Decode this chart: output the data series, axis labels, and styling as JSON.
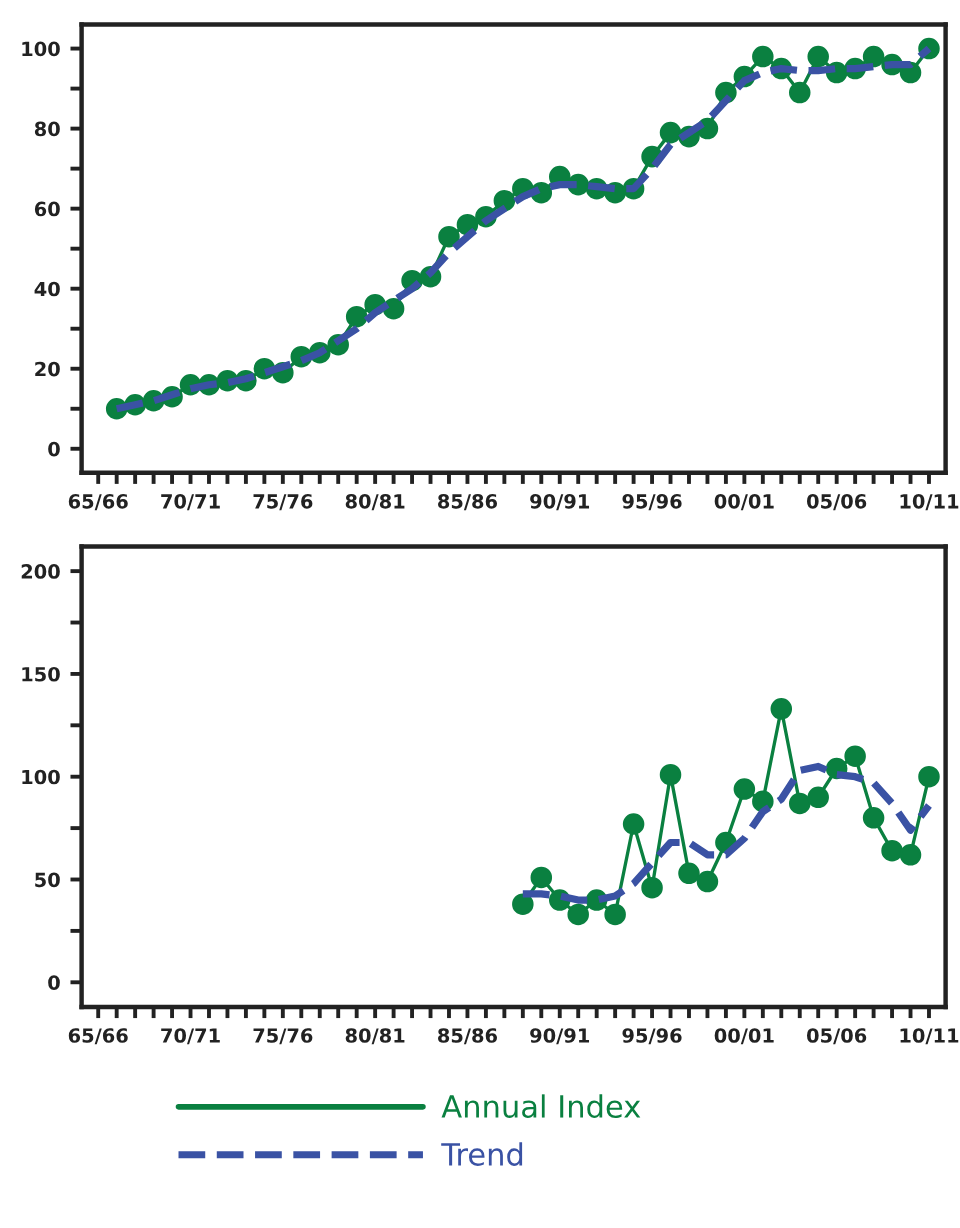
{
  "chart_data": [
    {
      "type": "line",
      "categories": [
        "65/66",
        null,
        null,
        null,
        null,
        "70/71",
        null,
        null,
        null,
        null,
        "75/76",
        null,
        null,
        null,
        null,
        "80/81",
        null,
        null,
        null,
        null,
        "85/86",
        null,
        null,
        null,
        null,
        "90/91",
        null,
        null,
        null,
        null,
        "95/96",
        null,
        null,
        null,
        null,
        "00/01",
        null,
        null,
        null,
        null,
        "05/06",
        null,
        null,
        null,
        null,
        "10/11"
      ],
      "series": [
        {
          "color": "#0a8040",
          "marker": "circle",
          "line_style": "solid",
          "values": [
            null,
            10,
            11,
            12,
            13,
            16,
            16,
            17,
            17,
            20,
            19,
            23,
            24,
            26,
            33,
            36,
            35,
            42,
            43,
            53,
            56,
            58,
            62,
            65,
            64,
            68,
            66,
            65,
            64,
            65,
            73,
            79,
            78,
            80,
            89,
            93,
            98,
            95,
            89,
            98,
            94,
            95,
            98,
            96,
            94,
            100
          ]
        },
        {
          "color": "#3a52a4",
          "marker": "none",
          "line_style": "dashed",
          "values": [
            null,
            10,
            11,
            12,
            13.5,
            15,
            16,
            16.5,
            17.5,
            19,
            20.5,
            22,
            24,
            27,
            30,
            34,
            37,
            40,
            44,
            49,
            53,
            57,
            60,
            63,
            65,
            66,
            66,
            65.5,
            65,
            65,
            70,
            76,
            79,
            82,
            87,
            92,
            94,
            95,
            94.5,
            94.5,
            95,
            95,
            95.5,
            96,
            96,
            100
          ]
        }
      ],
      "ylim": [
        -6,
        106
      ],
      "yticks": [
        0,
        {
          "value": 10,
          "label": null
        },
        20,
        {
          "value": 30,
          "label": null
        },
        40,
        {
          "value": 50,
          "label": null
        },
        60,
        {
          "value": 70,
          "label": null
        },
        80,
        {
          "value": 90,
          "label": null
        },
        100
      ],
      "grid": false
    },
    {
      "type": "line",
      "categories": [
        "65/66",
        null,
        null,
        null,
        null,
        "70/71",
        null,
        null,
        null,
        null,
        "75/76",
        null,
        null,
        null,
        null,
        "80/81",
        null,
        null,
        null,
        null,
        "85/86",
        null,
        null,
        null,
        null,
        "90/91",
        null,
        null,
        null,
        null,
        "95/96",
        null,
        null,
        null,
        null,
        "00/01",
        null,
        null,
        null,
        null,
        "05/06",
        null,
        null,
        null,
        null,
        "10/11"
      ],
      "series": [
        {
          "name": "Annual Index",
          "color": "#0a8040",
          "marker": "circle",
          "line_style": "solid",
          "values": [
            null,
            null,
            null,
            null,
            null,
            null,
            null,
            null,
            null,
            null,
            null,
            null,
            null,
            null,
            null,
            null,
            null,
            null,
            null,
            null,
            null,
            null,
            null,
            38,
            51,
            40,
            33,
            40,
            33,
            77,
            46,
            101,
            53,
            49,
            68,
            94,
            88,
            133,
            87,
            90,
            104,
            110,
            80,
            64,
            62,
            100
          ]
        },
        {
          "name": "Trend",
          "color": "#3a52a4",
          "marker": "none",
          "line_style": "dashed",
          "values": [
            null,
            null,
            null,
            null,
            null,
            null,
            null,
            null,
            null,
            null,
            null,
            null,
            null,
            null,
            null,
            null,
            null,
            null,
            null,
            null,
            null,
            null,
            null,
            43,
            43,
            42,
            40,
            40,
            42,
            48,
            58,
            68,
            68,
            62,
            62,
            70,
            83,
            89,
            103,
            105,
            101,
            100,
            97,
            87,
            74,
            86
          ]
        }
      ],
      "ylim": [
        -12,
        212
      ],
      "yticks": [
        0,
        {
          "value": 25,
          "label": null
        },
        50,
        {
          "value": 75,
          "label": null
        },
        100,
        {
          "value": 125,
          "label": null
        },
        150,
        {
          "value": 175,
          "label": null
        },
        200
      ],
      "grid": false,
      "legend": "bottom"
    }
  ]
}
